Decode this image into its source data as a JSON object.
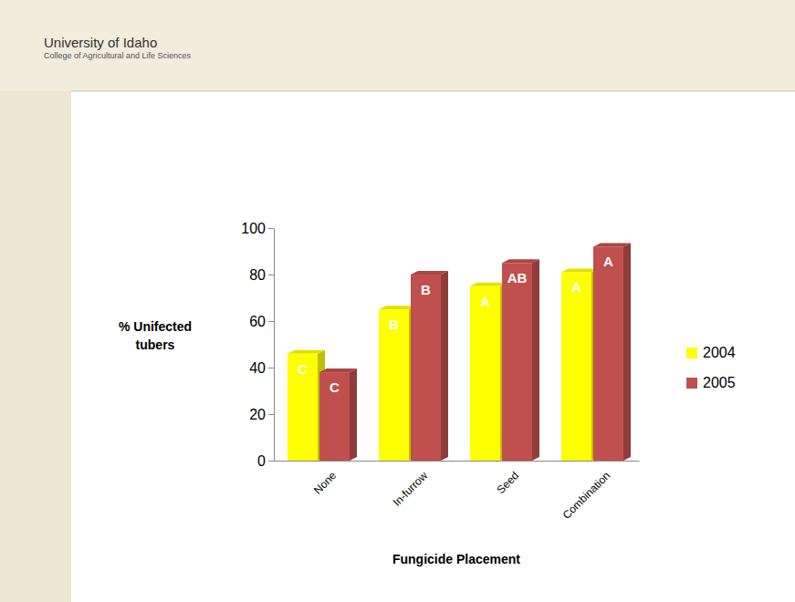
{
  "header": {
    "university": "University of Idaho",
    "college": "College of Agricultural and Life Sciences"
  },
  "chart_data": {
    "type": "bar",
    "x_label": "Fungicide Placement",
    "y_label": "% Unifected tubers",
    "categories": [
      "None",
      "In-furrow",
      "Seed",
      "Combination"
    ],
    "series": [
      {
        "name": "2004",
        "color": "#ffff00",
        "values": [
          46,
          65,
          75,
          81
        ],
        "annotations": [
          "C",
          "B",
          "A",
          "A"
        ]
      },
      {
        "name": "2005",
        "color": "#c0504d",
        "values": [
          38,
          80,
          85,
          92
        ],
        "annotations": [
          "C",
          "B",
          "AB",
          "A"
        ]
      }
    ],
    "ylim": [
      0,
      100
    ],
    "yticks": [
      0,
      20,
      40,
      60,
      80,
      100
    ],
    "grid": false,
    "legend": "right"
  }
}
